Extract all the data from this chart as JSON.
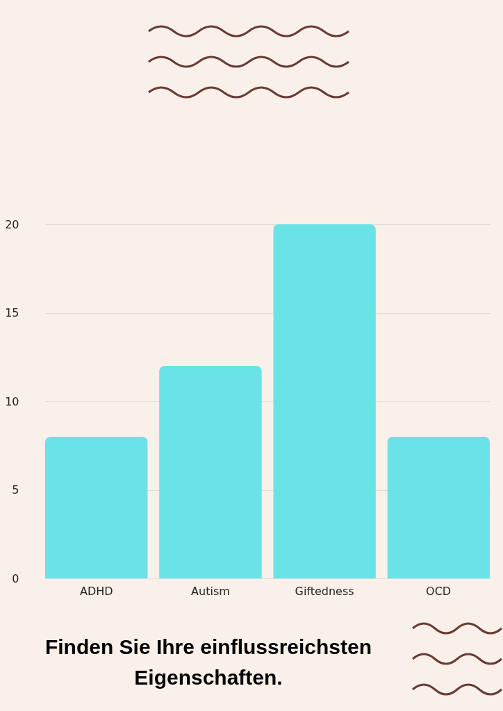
{
  "chart_data": {
    "type": "bar",
    "categories": [
      "ADHD",
      "Autism",
      "Giftedness",
      "OCD"
    ],
    "values": [
      8,
      12,
      20,
      8
    ],
    "color": "#6ae3e6",
    "ylim": [
      0,
      20
    ],
    "yticks": [
      0,
      5,
      10,
      15,
      20
    ],
    "grid": "y",
    "annotations": [
      "Finden Sie Ihre einflussreichsten Eigenschaften."
    ]
  }
}
